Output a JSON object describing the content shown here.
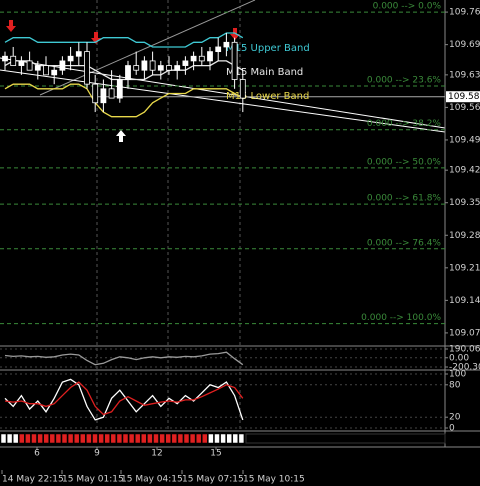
{
  "chart_data": [
    {
      "type": "candlestick",
      "open": [
        109.66,
        109.67,
        109.65,
        109.66,
        109.64,
        109.65,
        109.63,
        109.64,
        109.66,
        109.67,
        109.68,
        109.61,
        109.57,
        109.6,
        109.58,
        109.62,
        109.65,
        109.64,
        109.66,
        109.64,
        109.65,
        109.64,
        109.65,
        109.66,
        109.67,
        109.66,
        109.68,
        109.69,
        109.7,
        109.62
      ],
      "high": [
        109.68,
        109.69,
        109.67,
        109.68,
        109.66,
        109.67,
        109.65,
        109.67,
        109.69,
        109.7,
        109.7,
        109.63,
        109.62,
        109.64,
        109.63,
        109.66,
        109.68,
        109.67,
        109.68,
        109.66,
        109.67,
        109.66,
        109.67,
        109.68,
        109.69,
        109.69,
        109.71,
        109.72,
        109.71,
        109.64
      ],
      "low": [
        109.64,
        109.65,
        109.63,
        109.64,
        109.62,
        109.63,
        109.61,
        109.63,
        109.64,
        109.65,
        109.6,
        109.55,
        109.55,
        109.58,
        109.57,
        109.6,
        109.63,
        109.62,
        109.63,
        109.62,
        109.63,
        109.62,
        109.63,
        109.64,
        109.65,
        109.64,
        109.66,
        109.67,
        109.6,
        109.55
      ],
      "close": [
        109.67,
        109.65,
        109.66,
        109.64,
        109.65,
        109.63,
        109.64,
        109.66,
        109.67,
        109.68,
        109.61,
        109.57,
        109.6,
        109.58,
        109.62,
        109.65,
        109.64,
        109.66,
        109.64,
        109.65,
        109.64,
        109.65,
        109.66,
        109.67,
        109.66,
        109.68,
        109.69,
        109.7,
        109.62,
        109.58
      ],
      "up_color": "#ffffff",
      "down_color": "#000000",
      "series": [
        {
          "name": "M15 Upper Band",
          "color": "#3fc9d4",
          "values": [
            109.7,
            109.71,
            109.71,
            109.71,
            109.7,
            109.7,
            109.7,
            109.7,
            109.7,
            109.7,
            109.7,
            109.7,
            109.71,
            109.71,
            109.71,
            109.71,
            109.7,
            109.7,
            109.69,
            109.69,
            109.69,
            109.69,
            109.69,
            109.7,
            109.7,
            109.71,
            109.71,
            109.72,
            109.72,
            109.71
          ]
        },
        {
          "name": "M15 Main Band",
          "color": "#e8e8e8",
          "values": [
            109.65,
            109.66,
            109.66,
            109.66,
            109.65,
            109.65,
            109.65,
            109.65,
            109.65,
            109.65,
            109.65,
            109.64,
            109.63,
            109.62,
            109.62,
            109.62,
            109.62,
            109.62,
            109.63,
            109.63,
            109.64,
            109.64,
            109.64,
            109.65,
            109.65,
            109.65,
            109.66,
            109.66,
            109.65,
            109.64
          ]
        },
        {
          "name": "M15 Lower Band",
          "color": "#e8d84a",
          "values": [
            109.6,
            109.61,
            109.61,
            109.61,
            109.6,
            109.6,
            109.6,
            109.6,
            109.61,
            109.61,
            109.6,
            109.57,
            109.55,
            109.54,
            109.54,
            109.54,
            109.54,
            109.55,
            109.57,
            109.58,
            109.59,
            109.59,
            109.59,
            109.6,
            109.6,
            109.6,
            109.6,
            109.6,
            109.59,
            109.58
          ]
        }
      ],
      "ylim": [
        109.049,
        109.791
      ],
      "yticks": [
        {
          "value": 109.765,
          "label": "109.765"
        },
        {
          "value": 109.695,
          "label": "109.695"
        },
        {
          "value": 109.63,
          "label": "109.630"
        },
        {
          "value": 109.56,
          "label": "109.560"
        },
        {
          "value": 109.49,
          "label": "109.490"
        },
        {
          "value": 109.425,
          "label": "109.425"
        },
        {
          "value": 109.355,
          "label": "109.355"
        },
        {
          "value": 109.285,
          "label": "109.285"
        },
        {
          "value": 109.215,
          "label": "109.215"
        },
        {
          "value": 109.145,
          "label": "109.145"
        },
        {
          "value": 109.075,
          "label": "109.075"
        }
      ],
      "current_price": {
        "value": 109.583,
        "label": "109.583"
      },
      "fib_levels": [
        {
          "value": 109.765,
          "label": "0.000 --> 0.0%"
        },
        {
          "value": 109.606,
          "label": "0.000 --> 23.6%"
        },
        {
          "value": 109.512,
          "label": "0.000 --> 38.2%"
        },
        {
          "value": 109.43,
          "label": "0.000 --> 50.0%"
        },
        {
          "value": 109.352,
          "label": "0.000 --> 61.8%"
        },
        {
          "value": 109.256,
          "label": "0.000 --> 76.4%"
        },
        {
          "value": 109.095,
          "label": "0.000 --> 100.0%"
        }
      ],
      "fib_color": "#3a8a3a",
      "x_minor_labels": [
        "6",
        "9",
        "12",
        "15"
      ],
      "x_labels": [
        "14 May 22:15",
        "15 May 01:15",
        "15 May 04:15",
        "15 May 07:15",
        "15 May 10:15"
      ]
    },
    {
      "type": "line",
      "series": [
        {
          "color": "#9a9a9a",
          "values": [
            50,
            30,
            40,
            20,
            30,
            10,
            20,
            60,
            80,
            60,
            -60,
            -150,
            -120,
            -40,
            20,
            0,
            -40,
            0,
            20,
            0,
            20,
            10,
            30,
            20,
            40,
            80,
            90,
            120,
            -20,
            -150
          ]
        }
      ],
      "ylim": [
        -200.3,
        190.066
      ],
      "yticks": [
        {
          "value": 190.066,
          "label": "190.066"
        },
        {
          "value": 0,
          "label": "0.00"
        },
        {
          "value": -200.3,
          "label": "-200.30"
        }
      ]
    },
    {
      "type": "line",
      "series": [
        {
          "color": "#ffffff",
          "values": [
            55,
            40,
            60,
            35,
            50,
            30,
            55,
            85,
            90,
            80,
            40,
            15,
            20,
            55,
            70,
            50,
            30,
            45,
            60,
            40,
            55,
            45,
            60,
            50,
            65,
            80,
            75,
            85,
            60,
            15
          ]
        },
        {
          "color": "#e02020",
          "values": [
            50,
            48,
            50,
            45,
            45,
            40,
            45,
            60,
            75,
            85,
            70,
            40,
            25,
            30,
            50,
            58,
            50,
            42,
            45,
            48,
            50,
            48,
            52,
            52,
            58,
            65,
            72,
            80,
            75,
            55
          ]
        }
      ],
      "ylim": [
        0,
        100
      ],
      "yticks": [
        100,
        80,
        20,
        0
      ]
    }
  ]
}
